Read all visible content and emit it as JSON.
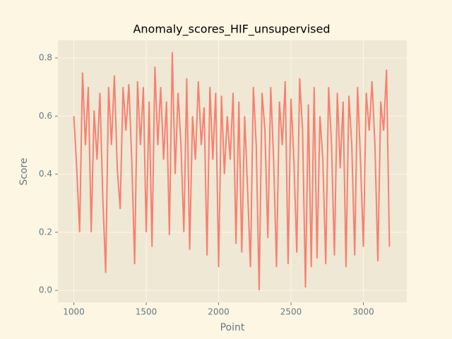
{
  "chart_data": {
    "type": "line",
    "title": "Anomaly_scores_HIF_unsupervised",
    "x_label": "Point",
    "y_label": "Score",
    "x": [
      1000,
      1020,
      1040,
      1060,
      1080,
      1100,
      1120,
      1140,
      1160,
      1180,
      1200,
      1220,
      1240,
      1260,
      1280,
      1300,
      1320,
      1340,
      1360,
      1380,
      1400,
      1420,
      1440,
      1460,
      1480,
      1500,
      1520,
      1540,
      1560,
      1580,
      1600,
      1620,
      1640,
      1660,
      1680,
      1700,
      1720,
      1740,
      1760,
      1780,
      1800,
      1820,
      1840,
      1860,
      1880,
      1900,
      1920,
      1940,
      1960,
      1980,
      2000,
      2020,
      2040,
      2060,
      2080,
      2100,
      2120,
      2140,
      2160,
      2180,
      2200,
      2220,
      2240,
      2260,
      2280,
      2300,
      2320,
      2340,
      2360,
      2380,
      2400,
      2420,
      2440,
      2460,
      2480,
      2500,
      2520,
      2540,
      2560,
      2580,
      2600,
      2620,
      2640,
      2660,
      2680,
      2700,
      2720,
      2740,
      2760,
      2780,
      2800,
      2820,
      2840,
      2860,
      2880,
      2900,
      2920,
      2940,
      2960,
      2980,
      3000,
      3020,
      3040,
      3060,
      3080,
      3100,
      3120,
      3140,
      3160,
      3180
    ],
    "series": [
      {
        "name": "Score",
        "color": "#f88070",
        "values": [
          0.6,
          0.42,
          0.2,
          0.75,
          0.5,
          0.7,
          0.2,
          0.62,
          0.45,
          0.68,
          0.32,
          0.06,
          0.7,
          0.5,
          0.74,
          0.42,
          0.28,
          0.7,
          0.55,
          0.71,
          0.45,
          0.09,
          0.72,
          0.5,
          0.7,
          0.2,
          0.65,
          0.15,
          0.77,
          0.5,
          0.7,
          0.45,
          0.65,
          0.19,
          0.82,
          0.4,
          0.68,
          0.5,
          0.2,
          0.73,
          0.14,
          0.6,
          0.45,
          0.72,
          0.5,
          0.63,
          0.12,
          0.7,
          0.45,
          0.68,
          0.08,
          0.67,
          0.4,
          0.6,
          0.45,
          0.68,
          0.16,
          0.65,
          0.13,
          0.6,
          0.35,
          0.08,
          0.7,
          0.5,
          0.0,
          0.68,
          0.55,
          0.18,
          0.7,
          0.45,
          0.08,
          0.65,
          0.5,
          0.72,
          0.09,
          0.66,
          0.45,
          0.13,
          0.73,
          0.55,
          0.01,
          0.64,
          0.08,
          0.7,
          0.11,
          0.6,
          0.45,
          0.09,
          0.7,
          0.5,
          0.12,
          0.68,
          0.42,
          0.65,
          0.08,
          0.67,
          0.5,
          0.12,
          0.7,
          0.45,
          0.15,
          0.68,
          0.55,
          0.72,
          0.5,
          0.1,
          0.65,
          0.55,
          0.76,
          0.15
        ]
      }
    ],
    "xlim": [
      890,
      3300
    ],
    "ylim": [
      -0.041,
      0.861
    ],
    "xticks": [
      1000,
      1500,
      2000,
      2500,
      3000
    ],
    "yticks": [
      {
        "value": 0,
        "label": "0.0"
      },
      0.2,
      0.4,
      0.6,
      0.8
    ],
    "grid": true
  }
}
